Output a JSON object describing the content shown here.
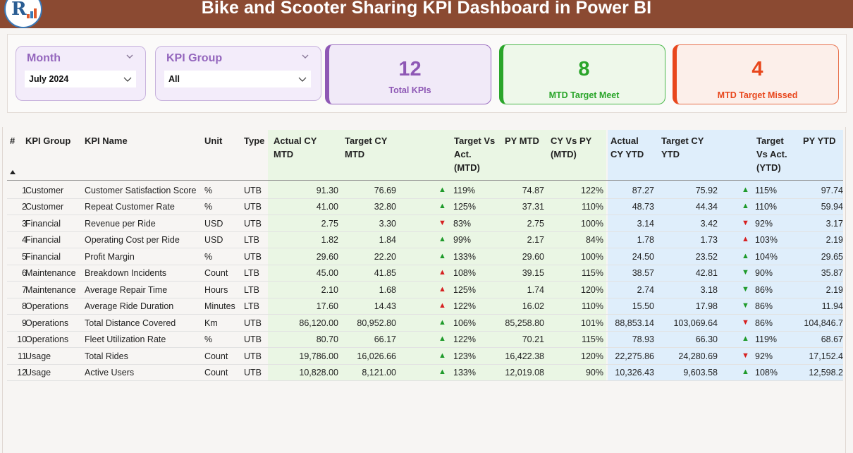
{
  "header": {
    "title": "Bike and Scooter Sharing KPI Dashboard in Power BI"
  },
  "filters": {
    "month": {
      "label": "Month",
      "value": "July 2024"
    },
    "kpi_group": {
      "label": "KPI Group",
      "value": "All"
    }
  },
  "cards": [
    {
      "value": "12",
      "label": "Total KPIs",
      "color": "#8e58b5"
    },
    {
      "value": "8",
      "label": "MTD Target Meet",
      "color": "#2aa52a"
    },
    {
      "value": "4",
      "label": "MTD Target Missed",
      "color": "#e8471d"
    }
  ],
  "table": {
    "columns": [
      "#",
      "KPI Group",
      "KPI Name",
      "Unit",
      "Type",
      "Actual CY MTD",
      "Target CY MTD",
      "Target Vs Act. (MTD)",
      "PY MTD",
      "CY Vs PY (MTD)",
      "Actual CY YTD",
      "Target CY YTD",
      "Target Vs Act. (YTD)",
      "PY YTD"
    ],
    "header_lines": {
      "actual_cy_mtd": [
        "Actual CY",
        "MTD"
      ],
      "target_cy_mtd": [
        "Target CY",
        "MTD"
      ],
      "target_vs_act_mtd": [
        "Target Vs",
        "Act.",
        "(MTD)"
      ],
      "py_mtd": [
        "PY MTD"
      ],
      "cy_vs_py_mtd": [
        "CY Vs PY",
        "(MTD)"
      ],
      "actual_cy_ytd": [
        "Actual",
        "CY YTD"
      ],
      "target_cy_ytd": [
        "Target CY",
        "YTD"
      ],
      "target_vs_act_ytd": [
        "Target",
        "Vs Act.",
        "(YTD)"
      ],
      "py_ytd": [
        "PY YTD"
      ]
    },
    "rows": [
      {
        "n": "1",
        "group": "Customer",
        "name": "Customer Satisfaction Score",
        "unit": "%",
        "type": "UTB",
        "act_mtd": "91.30",
        "tgt_mtd": "76.69",
        "mtd_dir": "up",
        "mtd_pct": "119%",
        "py_mtd": "74.87",
        "cy_py": "122%",
        "act_ytd": "87.27",
        "tgt_ytd": "75.92",
        "ytd_dir": "up",
        "ytd_pct": "115%",
        "py_ytd": "97.74"
      },
      {
        "n": "2",
        "group": "Customer",
        "name": "Repeat Customer Rate",
        "unit": "%",
        "type": "UTB",
        "act_mtd": "41.00",
        "tgt_mtd": "32.80",
        "mtd_dir": "up",
        "mtd_pct": "125%",
        "py_mtd": "37.31",
        "cy_py": "110%",
        "act_ytd": "48.73",
        "tgt_ytd": "44.34",
        "ytd_dir": "up",
        "ytd_pct": "110%",
        "py_ytd": "59.94"
      },
      {
        "n": "3",
        "group": "Financial",
        "name": "Revenue per Ride",
        "unit": "USD",
        "type": "UTB",
        "act_mtd": "2.75",
        "tgt_mtd": "3.30",
        "mtd_dir": "down",
        "mtd_pct": "83%",
        "py_mtd": "2.75",
        "cy_py": "100%",
        "act_ytd": "3.14",
        "tgt_ytd": "3.42",
        "ytd_dir": "down",
        "ytd_pct": "92%",
        "py_ytd": "3.17"
      },
      {
        "n": "4",
        "group": "Financial",
        "name": "Operating Cost per Ride",
        "unit": "USD",
        "type": "LTB",
        "act_mtd": "1.82",
        "tgt_mtd": "1.84",
        "mtd_dir": "up",
        "mtd_pct": "99%",
        "py_mtd": "2.17",
        "cy_py": "84%",
        "act_ytd": "1.78",
        "tgt_ytd": "1.73",
        "ytd_dir": "uprd",
        "ytd_pct": "103%",
        "py_ytd": "2.19"
      },
      {
        "n": "5",
        "group": "Financial",
        "name": "Profit Margin",
        "unit": "%",
        "type": "UTB",
        "act_mtd": "29.60",
        "tgt_mtd": "22.20",
        "mtd_dir": "up",
        "mtd_pct": "133%",
        "py_mtd": "29.60",
        "cy_py": "100%",
        "act_ytd": "24.50",
        "tgt_ytd": "23.52",
        "ytd_dir": "up",
        "ytd_pct": "104%",
        "py_ytd": "29.65"
      },
      {
        "n": "6",
        "group": "Maintenance",
        "name": "Breakdown Incidents",
        "unit": "Count",
        "type": "LTB",
        "act_mtd": "45.00",
        "tgt_mtd": "41.85",
        "mtd_dir": "uprd",
        "mtd_pct": "108%",
        "py_mtd": "39.15",
        "cy_py": "115%",
        "act_ytd": "38.57",
        "tgt_ytd": "42.81",
        "ytd_dir": "downgr",
        "ytd_pct": "90%",
        "py_ytd": "35.87"
      },
      {
        "n": "7",
        "group": "Maintenance",
        "name": "Average Repair Time",
        "unit": "Hours",
        "type": "LTB",
        "act_mtd": "2.10",
        "tgt_mtd": "1.68",
        "mtd_dir": "uprd",
        "mtd_pct": "125%",
        "py_mtd": "1.74",
        "cy_py": "120%",
        "act_ytd": "2.74",
        "tgt_ytd": "3.18",
        "ytd_dir": "downgr",
        "ytd_pct": "86%",
        "py_ytd": "2.19"
      },
      {
        "n": "8",
        "group": "Operations",
        "name": "Average Ride Duration",
        "unit": "Minutes",
        "type": "LTB",
        "act_mtd": "17.60",
        "tgt_mtd": "14.43",
        "mtd_dir": "uprd",
        "mtd_pct": "122%",
        "py_mtd": "16.02",
        "cy_py": "110%",
        "act_ytd": "15.50",
        "tgt_ytd": "17.98",
        "ytd_dir": "downgr",
        "ytd_pct": "86%",
        "py_ytd": "11.94"
      },
      {
        "n": "9",
        "group": "Operations",
        "name": "Total Distance Covered",
        "unit": "Km",
        "type": "UTB",
        "act_mtd": "86,120.00",
        "tgt_mtd": "80,952.80",
        "mtd_dir": "up",
        "mtd_pct": "106%",
        "py_mtd": "85,258.80",
        "cy_py": "101%",
        "act_ytd": "88,853.14",
        "tgt_ytd": "103,069.64",
        "ytd_dir": "down",
        "ytd_pct": "86%",
        "py_ytd": "104,846.7"
      },
      {
        "n": "10",
        "group": "Operations",
        "name": "Fleet Utilization Rate",
        "unit": "%",
        "type": "UTB",
        "act_mtd": "80.70",
        "tgt_mtd": "66.17",
        "mtd_dir": "up",
        "mtd_pct": "122%",
        "py_mtd": "70.21",
        "cy_py": "115%",
        "act_ytd": "78.93",
        "tgt_ytd": "66.30",
        "ytd_dir": "up",
        "ytd_pct": "119%",
        "py_ytd": "68.67"
      },
      {
        "n": "11",
        "group": "Usage",
        "name": "Total Rides",
        "unit": "Count",
        "type": "UTB",
        "act_mtd": "19,786.00",
        "tgt_mtd": "16,026.66",
        "mtd_dir": "up",
        "mtd_pct": "123%",
        "py_mtd": "16,422.38",
        "cy_py": "120%",
        "act_ytd": "22,275.86",
        "tgt_ytd": "24,280.69",
        "ytd_dir": "down",
        "ytd_pct": "92%",
        "py_ytd": "17,152.4"
      },
      {
        "n": "12",
        "group": "Usage",
        "name": "Active Users",
        "unit": "Count",
        "type": "UTB",
        "act_mtd": "10,828.00",
        "tgt_mtd": "8,121.00",
        "mtd_dir": "up",
        "mtd_pct": "133%",
        "py_mtd": "12,019.08",
        "cy_py": "90%",
        "act_ytd": "10,326.43",
        "tgt_ytd": "9,603.58",
        "ytd_dir": "up",
        "ytd_pct": "108%",
        "py_ytd": "12,598.2"
      }
    ]
  }
}
